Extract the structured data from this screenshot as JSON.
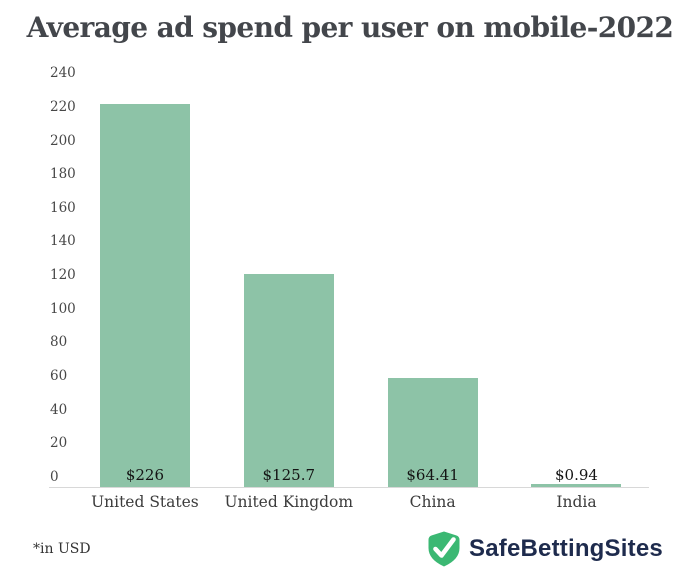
{
  "chart_data": {
    "type": "bar",
    "title": "Average ad spend per user on mobile-2022",
    "categories": [
      "United States",
      "United Kingdom",
      "China",
      "India"
    ],
    "values": [
      226,
      125.7,
      64.41,
      0.94
    ],
    "value_labels": [
      "$226",
      "$125.7",
      "$64.41",
      "$0.94"
    ],
    "xlabel": "",
    "ylabel": "",
    "ylim": [
      0,
      240
    ],
    "ytick_step": 20,
    "yticks": [
      0,
      20,
      40,
      60,
      80,
      100,
      120,
      140,
      160,
      180,
      200,
      220,
      240
    ],
    "grid": false,
    "legend": false,
    "bar_color": "#8dc3a7"
  },
  "footnote": "*in USD",
  "brand": {
    "name": "SafeBettingSites",
    "shield_color": "#3bb873",
    "check_color": "#ffffff",
    "text_color": "#1e2b4d"
  }
}
